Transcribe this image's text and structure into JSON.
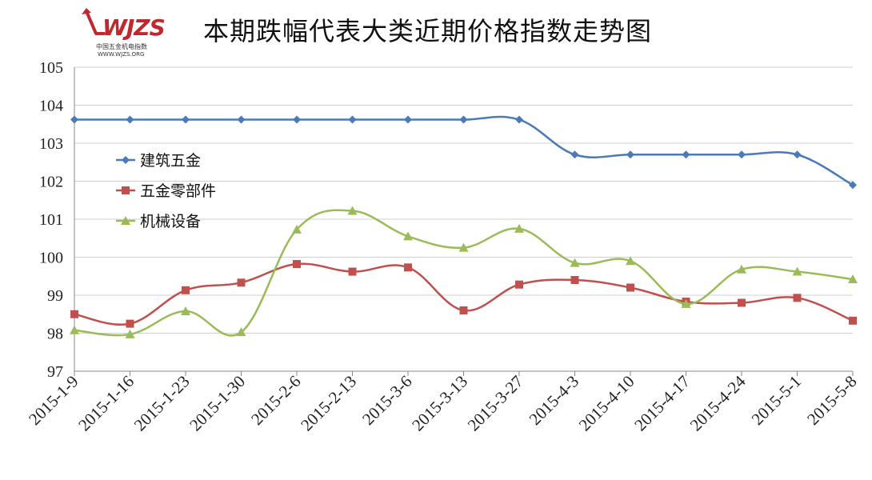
{
  "title": "本期跌幅代表大类近期价格指数走势图",
  "logo": {
    "brand": "WJZS",
    "subtitle_cn": "中国五金机电指数",
    "url_text": "WWW.WJZS.ORG"
  },
  "chart_data": {
    "type": "line",
    "title": "本期跌幅代表大类近期价格指数走势图",
    "xlabel": "",
    "ylabel": "",
    "ylim": [
      97,
      105
    ],
    "yticks": [
      97,
      98,
      99,
      100,
      101,
      102,
      103,
      104,
      105
    ],
    "grid": true,
    "legend_position": "left",
    "categories": [
      "2015-1-9",
      "2015-1-16",
      "2015-1-23",
      "2015-1-30",
      "2015-2-6",
      "2015-2-13",
      "2015-3-6",
      "2015-3-13",
      "2015-3-27",
      "2015-4-3",
      "2015-4-10",
      "2015-4-17",
      "2015-4-24",
      "2015-5-1",
      "2015-5-8"
    ],
    "series": [
      {
        "name": "建筑五金",
        "color": "#4a7ab8",
        "marker": "diamond",
        "values": [
          103.62,
          103.62,
          103.62,
          103.62,
          103.62,
          103.62,
          103.62,
          103.62,
          103.62,
          102.7,
          102.7,
          102.7,
          102.7,
          102.7,
          101.9
        ]
      },
      {
        "name": "五金零部件",
        "color": "#c0504d",
        "marker": "square",
        "values": [
          98.5,
          98.25,
          99.13,
          99.33,
          99.82,
          99.62,
          99.73,
          98.6,
          99.28,
          99.4,
          99.2,
          98.83,
          98.8,
          98.93,
          98.33
        ]
      },
      {
        "name": "机械设备",
        "color": "#9bbb59",
        "marker": "triangle",
        "values": [
          98.08,
          97.97,
          98.58,
          98.03,
          100.73,
          101.22,
          100.55,
          100.25,
          100.75,
          99.85,
          99.9,
          98.77,
          99.68,
          99.62,
          99.42
        ]
      }
    ]
  }
}
